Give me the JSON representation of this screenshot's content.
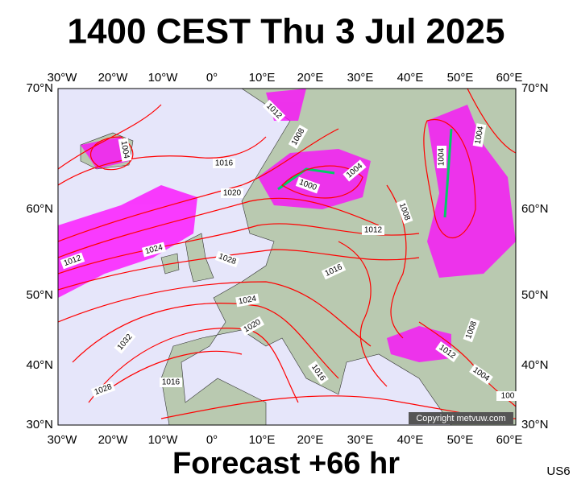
{
  "header": {
    "title": "1400 CEST Thu 3 Jul 2025"
  },
  "map": {
    "lon_labels": [
      "30°W",
      "20°W",
      "10°W",
      "0°",
      "10°E",
      "20°E",
      "30°E",
      "40°E",
      "50°E",
      "60°E"
    ],
    "lat_labels": [
      "70°N",
      "60°N",
      "50°N",
      "40°N",
      "30°N"
    ],
    "isobar_labels": [
      "1012",
      "1008",
      "1004",
      "1016",
      "1004",
      "1000",
      "1020",
      "1004",
      "1004",
      "1008",
      "1012",
      "1024",
      "1028",
      "1012",
      "1016",
      "1024",
      "1020",
      "1032",
      "1008",
      "1012",
      "1016",
      "1004",
      "1016",
      "1028",
      "100"
    ],
    "copyright": "Copyright metvuw.com"
  },
  "footer": {
    "forecast": "Forecast +66 hr",
    "code": "US6"
  }
}
